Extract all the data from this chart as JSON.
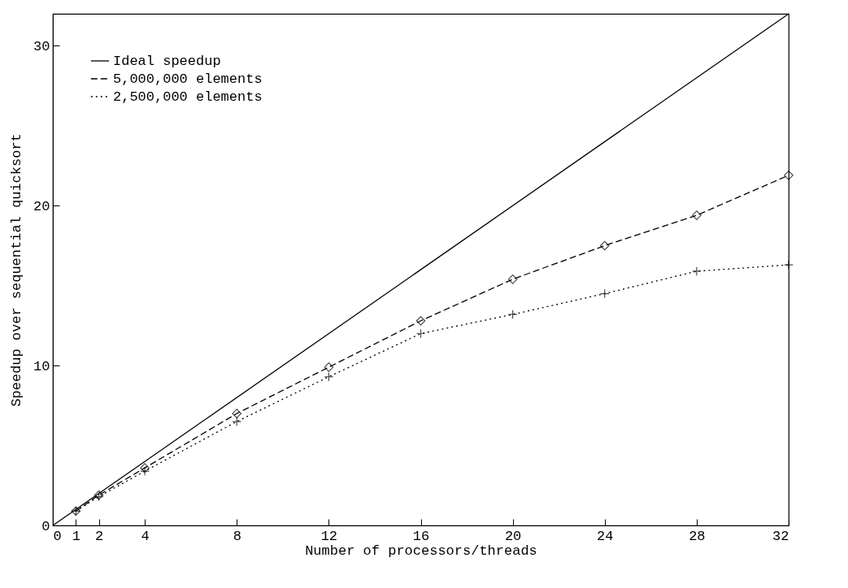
{
  "chart_data": {
    "type": "line",
    "xlabel": "Number of processors/threads",
    "ylabel": "Speedup over sequential quicksort",
    "xlim": [
      0,
      32
    ],
    "xticks": [
      0,
      1,
      2,
      4,
      8,
      12,
      16,
      20,
      24,
      28,
      32
    ],
    "ylim": [
      0,
      32
    ],
    "yticks": [
      0,
      10,
      20,
      30
    ],
    "grid": false,
    "legend": "top left",
    "series": [
      {
        "name": "Ideal speedup",
        "color": "#000000",
        "marker": "none",
        "line_style": "solid",
        "x": [
          0,
          32
        ],
        "values": [
          0,
          32
        ]
      },
      {
        "name": "5,000,000 elements",
        "color": "#000000",
        "marker": "diamond",
        "line_style": "dashed",
        "x": [
          1,
          2,
          4,
          8,
          12,
          16,
          20,
          24,
          28,
          32
        ],
        "values": [
          0.9,
          1.9,
          3.6,
          7.0,
          9.9,
          12.8,
          15.4,
          17.5,
          19.4,
          21.9
        ]
      },
      {
        "name": "2,500,000 elements",
        "color": "#000000",
        "marker": "cross",
        "line_style": "dotted",
        "x": [
          1,
          2,
          4,
          8,
          12,
          16,
          20,
          24,
          28,
          32
        ],
        "values": [
          0.9,
          1.8,
          3.4,
          6.5,
          9.3,
          12.0,
          13.2,
          14.5,
          15.9,
          16.3
        ]
      }
    ]
  }
}
